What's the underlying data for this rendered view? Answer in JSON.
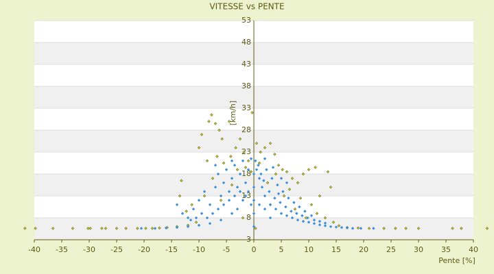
{
  "chart_data": {
    "type": "scatter",
    "title": "VITESSE vs PENTE",
    "x_label": "Pente [%]",
    "y_label": "[km/h]",
    "xlim": [
      -40,
      40
    ],
    "ylim": [
      3,
      53
    ],
    "xticks": [
      -40,
      -35,
      -30,
      -25,
      -20,
      -15,
      -10,
      -5,
      0,
      5,
      10,
      15,
      20,
      25,
      30,
      35,
      40
    ],
    "yticks": [
      3,
      8,
      13,
      18,
      23,
      28,
      33,
      38,
      43,
      48,
      53
    ],
    "grid": true,
    "series": [
      {
        "color": "#cfcc3a",
        "x": [
          -41.7,
          -39.8,
          -36.6,
          -33,
          -30.2,
          -29.8,
          -27.7,
          -27,
          -25,
          -23.3,
          -21.2,
          -19.7,
          -18.5,
          -17.2,
          -15.8,
          -14,
          -12,
          -10.5,
          -13.5,
          -13.2,
          -11.3,
          -10,
          -9.5,
          -8.2,
          -7.7,
          -7,
          -6.3,
          -5.8,
          -4.5,
          -8.5,
          -6.7,
          -5.5,
          -4.2,
          -3.3,
          -2.5,
          -1.8,
          -1,
          -0.3,
          0.5,
          1.2,
          2,
          3,
          3.8,
          4.5,
          5.2,
          6,
          7,
          8,
          9,
          10,
          11.2,
          13.5,
          14,
          12,
          10.5,
          11.5,
          13,
          14.5,
          15.5,
          17,
          19,
          21,
          23.7,
          25.8,
          27.7,
          30,
          36.2,
          37.8,
          42.5,
          -9,
          -7.5,
          -3,
          2.5,
          5.5,
          7.5,
          9.5,
          -2,
          0.3,
          -12.3,
          -4,
          6.5,
          8.5,
          -1.5,
          1,
          -0.5,
          4,
          -6,
          3
        ],
        "values": [
          5.6,
          5.6,
          5.6,
          5.6,
          5.6,
          5.6,
          5.6,
          5.6,
          5.6,
          5.6,
          5.6,
          5.6,
          5.6,
          5.7,
          5.8,
          6,
          6.3,
          7,
          13,
          16.5,
          11,
          24,
          27,
          30,
          31.5,
          29.5,
          28,
          26,
          30,
          21,
          22,
          20.5,
          22,
          24,
          26,
          23,
          21,
          32,
          25,
          23,
          24,
          25,
          22.5,
          20,
          19,
          18.5,
          17,
          16,
          18,
          19,
          19.5,
          18.5,
          15,
          13,
          11,
          9,
          8,
          7,
          6.2,
          5.8,
          5.7,
          5.6,
          5.6,
          5.6,
          5.6,
          5.6,
          5.6,
          5.6,
          5.6,
          13,
          17,
          19,
          16,
          13,
          10,
          8,
          8,
          5.6,
          9.5,
          15.5,
          14.5,
          12.5,
          19.5,
          20.5,
          18.5,
          18,
          12,
          11
        ]
      },
      {
        "color": "#3d8fd9",
        "x": [
          -20.5,
          -18,
          -16,
          -14,
          -12,
          -10,
          -8,
          -6,
          -4,
          -3,
          -2,
          -1,
          0,
          0,
          0,
          0,
          0,
          0.5,
          1,
          1.5,
          2,
          3,
          4,
          5,
          6,
          7,
          8,
          9,
          10,
          11,
          12,
          13,
          14,
          15,
          16,
          17,
          18,
          19.5,
          21.8,
          -14,
          -13,
          -12,
          -11,
          -10,
          -9,
          -8,
          -7,
          -6.5,
          -6,
          -5.5,
          -5,
          -4.5,
          -4,
          -3.5,
          -3,
          -2.5,
          -2,
          -1.5,
          -1,
          -0.5,
          0.3,
          0.8,
          1.3,
          1.8,
          2.3,
          2.8,
          3.3,
          3.8,
          4.3,
          4.8,
          5.3,
          5.8,
          6.3,
          6.8,
          7.3,
          7.8,
          8.3,
          8.8,
          9.3,
          9.8,
          10.5,
          11,
          12,
          13,
          -8.5,
          -7.5,
          -6.5,
          -5.5,
          -4.5,
          -3.5,
          -2.5,
          -1.5,
          -0.5,
          1,
          2,
          3,
          -9.5,
          -10.5,
          -11.5,
          4.5,
          5,
          6,
          -7,
          -4,
          2,
          3.5
        ],
        "values": [
          5.6,
          5.6,
          5.7,
          5.8,
          6,
          6.3,
          6.7,
          7.5,
          9,
          10,
          12,
          14,
          6,
          9,
          12,
          15,
          18,
          19,
          17,
          15,
          13,
          11,
          10,
          9,
          8.5,
          8,
          7.5,
          7.2,
          7,
          6.7,
          6.4,
          6.2,
          6,
          5.9,
          5.8,
          5.7,
          5.6,
          5.6,
          5.6,
          11,
          9,
          8,
          10,
          12,
          14,
          11,
          15,
          18,
          13,
          16,
          19,
          14,
          17,
          20,
          15,
          18,
          21,
          16,
          19,
          21.5,
          21,
          20,
          18,
          16.5,
          19,
          14,
          17,
          12.5,
          15.5,
          11.5,
          14,
          10.5,
          12.5,
          9.5,
          11.5,
          9,
          10.5,
          8.5,
          9.5,
          8,
          8.5,
          7.5,
          7.2,
          6.8,
          8,
          9,
          10,
          11,
          12,
          13,
          14,
          13,
          11,
          11,
          10,
          8,
          9,
          8,
          7.5,
          13.5,
          17,
          16,
          20,
          21,
          21.5,
          19.5
        ]
      }
    ]
  }
}
